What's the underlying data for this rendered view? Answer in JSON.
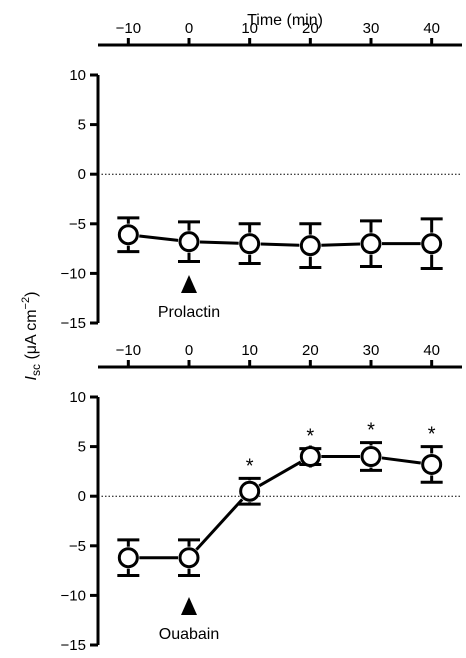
{
  "figure": {
    "x_title": "Time (min)",
    "y_title_main": "I",
    "y_title_sub": "sc",
    "y_title_units": " (μA cm",
    "y_title_exp": "−2",
    "y_title_close": ")"
  },
  "chart_data": [
    {
      "type": "line",
      "annotation": "Prolactin",
      "annotation_x": 0,
      "x": [
        -10,
        0,
        10,
        20,
        30,
        40
      ],
      "x_tick_labels": [
        "−10",
        "0",
        "10",
        "20",
        "30",
        "40"
      ],
      "xlim": [
        -15,
        45
      ],
      "x_axis_position": "top",
      "series": [
        {
          "values": [
            -6.1,
            -6.8,
            -7.0,
            -7.2,
            -7.0,
            -7.0
          ],
          "error": [
            1.7,
            2.0,
            2.0,
            2.2,
            2.3,
            2.5
          ],
          "significant": [
            false,
            false,
            false,
            false,
            false,
            false
          ]
        }
      ],
      "ylim": [
        -15,
        10
      ],
      "y_ticks": [
        10,
        5,
        0,
        -5,
        -10,
        -15
      ],
      "y_tick_labels": [
        "10",
        "5",
        "0",
        "−5",
        "−10",
        "−15"
      ],
      "reference_line": 0,
      "grid": false
    },
    {
      "type": "line",
      "annotation": "Ouabain",
      "annotation_x": 0,
      "x": [
        -10,
        0,
        10,
        20,
        30,
        40
      ],
      "x_tick_labels": [
        "−10",
        "0",
        "10",
        "20",
        "30",
        "40"
      ],
      "xlim": [
        -15,
        45
      ],
      "x_axis_position": "top",
      "series": [
        {
          "values": [
            -6.2,
            -6.2,
            0.5,
            4.0,
            4.0,
            3.2
          ],
          "error": [
            1.8,
            1.8,
            1.3,
            0.8,
            1.4,
            1.8
          ],
          "significant": [
            false,
            false,
            true,
            true,
            true,
            true
          ]
        }
      ],
      "significance_marker": "*",
      "ylim": [
        -15,
        10
      ],
      "y_ticks": [
        10,
        5,
        0,
        -5,
        -10,
        -15
      ],
      "y_tick_labels": [
        "10",
        "5",
        "0",
        "−5",
        "−10",
        "−15"
      ],
      "reference_line": 0,
      "grid": false
    }
  ]
}
